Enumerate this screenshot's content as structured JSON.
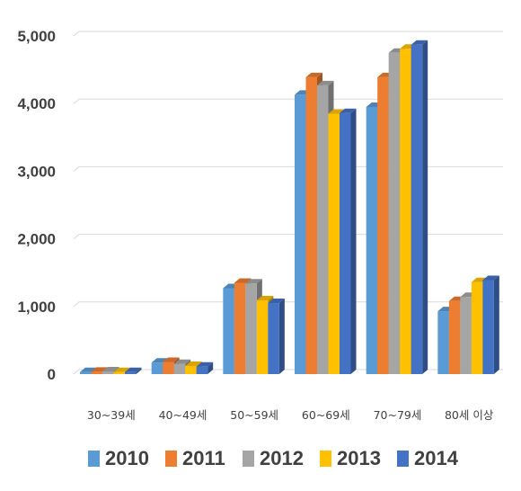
{
  "chart_data": {
    "type": "bar",
    "style": "3d-clustered-column",
    "categories": [
      "30~39세",
      "40~49세",
      "50~59세",
      "60~69세",
      "70~79세",
      "80세 이상"
    ],
    "series": [
      {
        "name": "2010",
        "color": "#5b9bd5",
        "values": [
          30,
          170,
          1270,
          4130,
          3950,
          930
        ]
      },
      {
        "name": "2011",
        "color": "#ed7d31",
        "values": [
          35,
          180,
          1350,
          4390,
          4390,
          1080
        ]
      },
      {
        "name": "2012",
        "color": "#a5a5a5",
        "values": [
          40,
          150,
          1340,
          4270,
          4750,
          1140
        ]
      },
      {
        "name": "2013",
        "color": "#ffc000",
        "values": [
          30,
          120,
          1090,
          3850,
          4810,
          1360
        ]
      },
      {
        "name": "2014",
        "color": "#4472c4",
        "values": [
          30,
          110,
          1050,
          3860,
          4870,
          1390
        ]
      }
    ],
    "yticks": [
      "0",
      "1,000",
      "2,000",
      "3,000",
      "4,000",
      "5,000"
    ],
    "ylim": [
      0,
      5000
    ],
    "grid": true,
    "legend": "bottom"
  }
}
